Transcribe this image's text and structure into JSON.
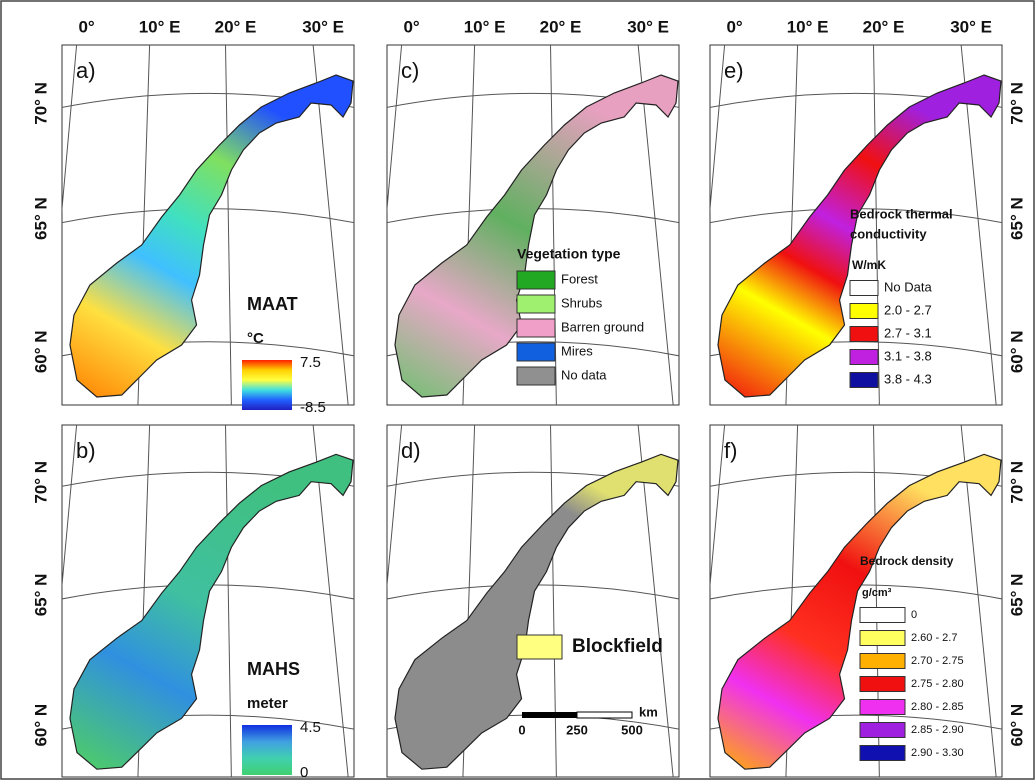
{
  "axes": {
    "top_labels": [
      "0°",
      "10° E",
      "20° E",
      "30° E"
    ],
    "side_labels": [
      "70° N",
      "65° N",
      "60° N"
    ]
  },
  "panels": [
    {
      "label": "a)",
      "legend": {
        "kind": "colorbar",
        "title_lines": [
          "MAAT"
        ],
        "unit": "°C",
        "max": "7.5",
        "min": "-8.5",
        "colors": [
          "#ff2000",
          "#ffd000",
          "#ffff40",
          "#40e0e0",
          "#2060ff",
          "#2020c0"
        ]
      }
    },
    {
      "label": "b)",
      "legend": {
        "kind": "colorbar",
        "title_lines": [
          "MAHS"
        ],
        "unit": "meter",
        "max": "4.5",
        "min": "0",
        "colors": [
          "#1030e0",
          "#40a0e0",
          "#40d0b0",
          "#40d070"
        ]
      }
    },
    {
      "label": "c)",
      "legend": {
        "kind": "categories",
        "title_lines": [
          "Vegetation type"
        ],
        "items": [
          {
            "label": "Forest",
            "color": "#22a822"
          },
          {
            "label": "Shrubs",
            "color": "#a0f070"
          },
          {
            "label": "Barren ground",
            "color": "#f0a0c8"
          },
          {
            "label": "Mires",
            "color": "#1060e0"
          },
          {
            "label": "No data",
            "color": "#909090"
          }
        ]
      }
    },
    {
      "label": "d)",
      "legend": {
        "kind": "blockfield",
        "items": [
          {
            "label": "Blockfield",
            "color": "#ffff80"
          }
        ],
        "scale_labels": [
          "0",
          "250",
          "500"
        ],
        "scale_unit": "km"
      }
    },
    {
      "label": "e)",
      "legend": {
        "kind": "categories",
        "title_lines": [
          "Bedrock thermal",
          "conductivity"
        ],
        "unit": "W/mK",
        "items": [
          {
            "label": "No Data",
            "color": "#ffffff"
          },
          {
            "label": "2.0 - 2.7",
            "color": "#ffff00"
          },
          {
            "label": "2.7 - 3.1",
            "color": "#f01010"
          },
          {
            "label": "3.1 - 3.8",
            "color": "#c020e0"
          },
          {
            "label": "3.8 - 4.3",
            "color": "#1010a0"
          }
        ]
      }
    },
    {
      "label": "f)",
      "legend": {
        "kind": "categories",
        "title_lines": [
          "Bedrock density"
        ],
        "unit": "g/cm³",
        "items": [
          {
            "label": "0",
            "color": "#ffffff"
          },
          {
            "label": "2.60 - 2.7",
            "color": "#ffff60"
          },
          {
            "label": "2.70 - 2.75",
            "color": "#ffb000"
          },
          {
            "label": "2.75 - 2.80",
            "color": "#f01010"
          },
          {
            "label": "2.80 - 2.85",
            "color": "#f030f0"
          },
          {
            "label": "2.85 - 2.90",
            "color": "#a020e0"
          },
          {
            "label": "2.90 - 3.30",
            "color": "#1010b0"
          }
        ]
      }
    }
  ]
}
